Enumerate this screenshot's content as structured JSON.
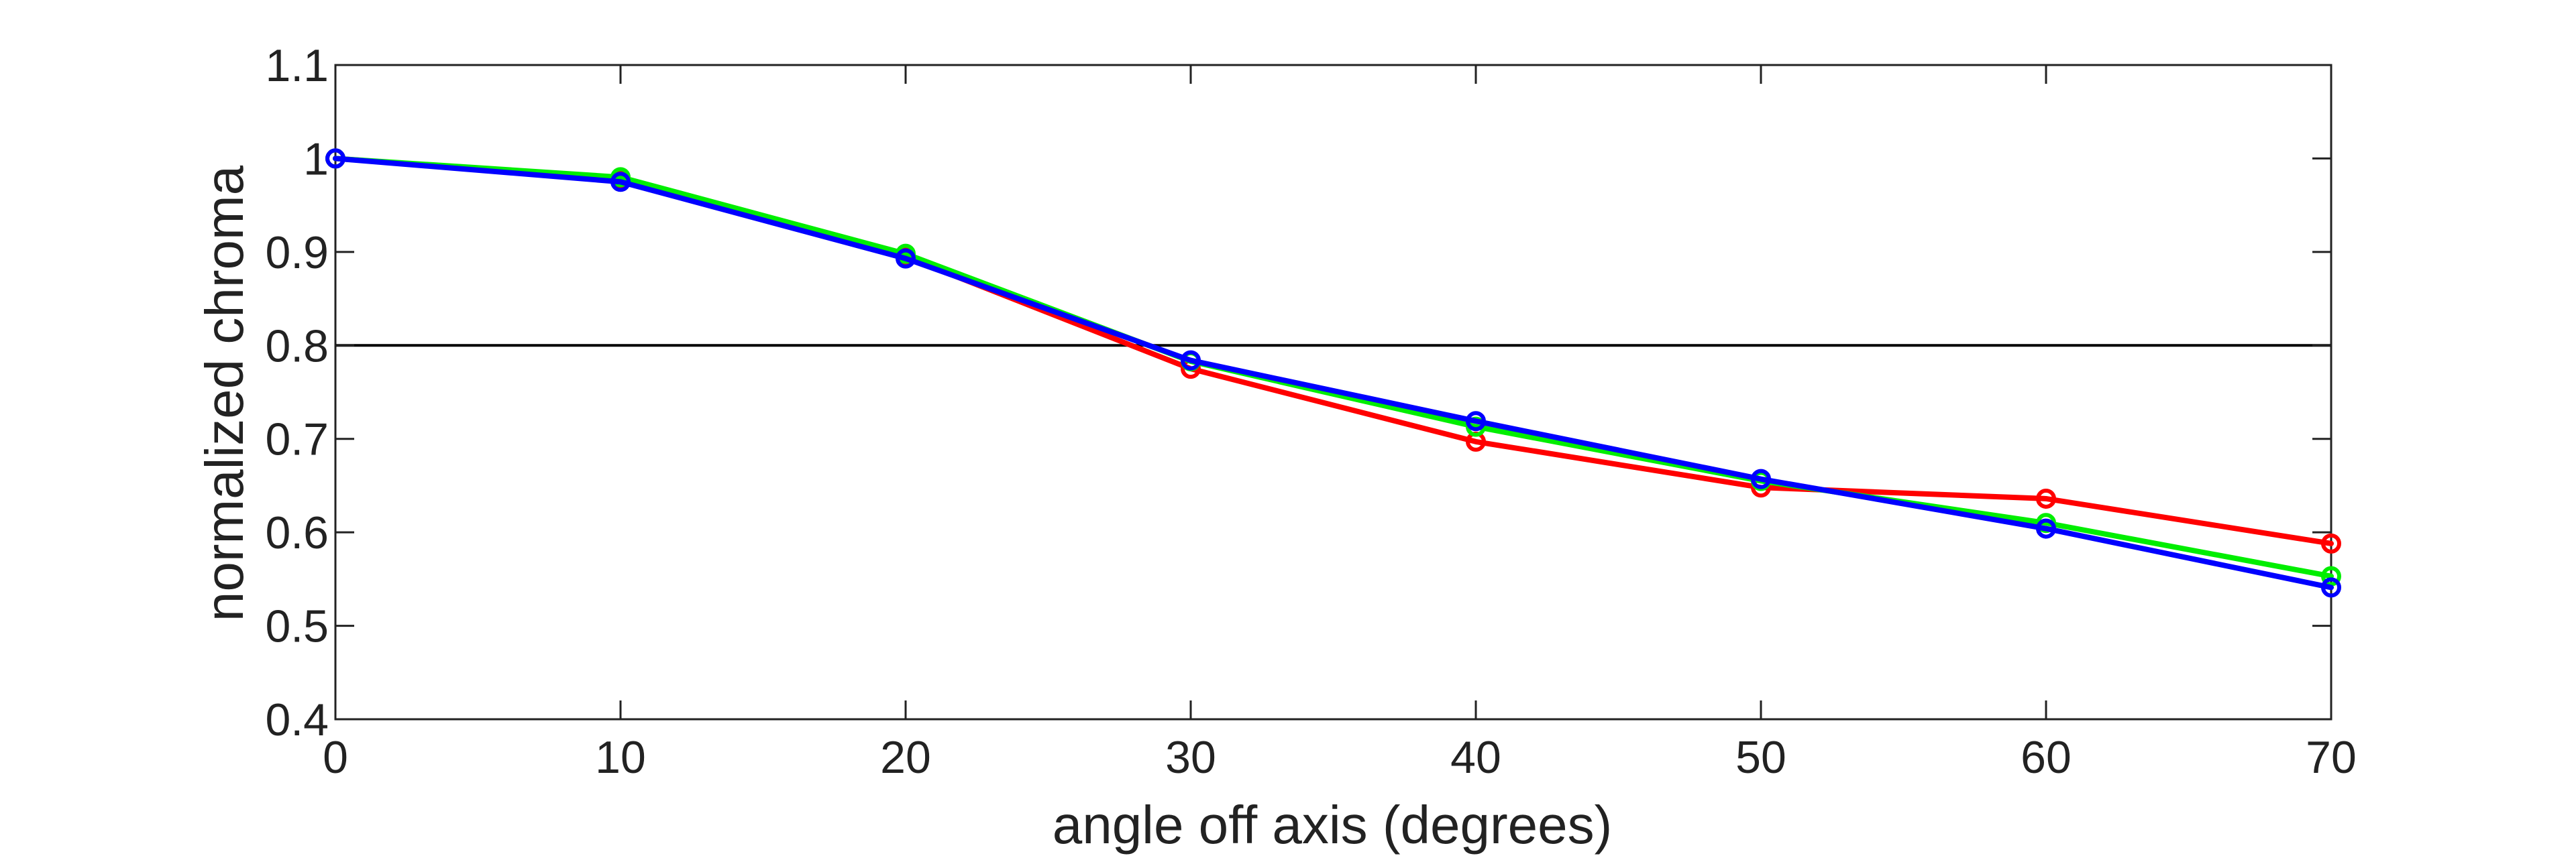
{
  "chart_data": {
    "type": "line",
    "title": "",
    "xlabel": "angle off axis (degrees)",
    "ylabel": "normalized chroma",
    "xlim": [
      0,
      70
    ],
    "ylim": [
      0.4,
      1.1
    ],
    "x_ticks": [
      "0",
      "10",
      "20",
      "30",
      "40",
      "50",
      "60",
      "70"
    ],
    "y_ticks": [
      "0.4",
      "0.5",
      "0.6",
      "0.7",
      "0.8",
      "0.9",
      "1",
      "1.1"
    ],
    "x": [
      0,
      10,
      20,
      30,
      40,
      50,
      60,
      70
    ],
    "grid": false,
    "reference_line": {
      "y": 0.8,
      "color": "#000000"
    },
    "series": [
      {
        "color": "#ff0000",
        "values": [
          1.0,
          0.978,
          0.895,
          0.775,
          0.697,
          0.648,
          0.636,
          0.588
        ]
      },
      {
        "color": "#00ee00",
        "values": [
          1.0,
          0.98,
          0.898,
          0.783,
          0.713,
          0.655,
          0.61,
          0.553
        ]
      },
      {
        "color": "#0000ff",
        "values": [
          1.0,
          0.975,
          0.893,
          0.784,
          0.719,
          0.657,
          0.604,
          0.541
        ]
      }
    ]
  }
}
